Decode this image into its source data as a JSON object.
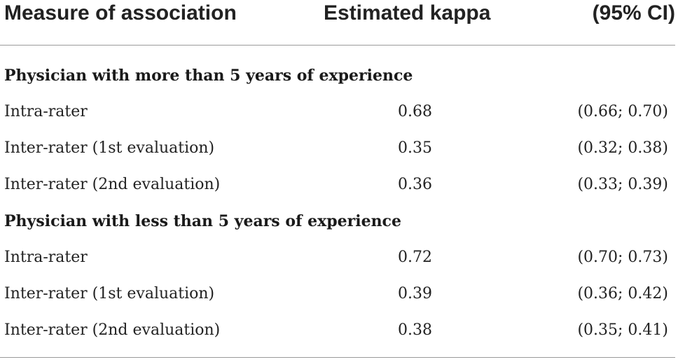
{
  "header": {
    "measure": "Measure of association",
    "kappa": "Estimated kappa",
    "ci": "(95% CI)"
  },
  "groups": [
    {
      "title": "Physician with more than 5 years of experience",
      "rows": [
        {
          "label": "Intra-rater",
          "kappa": "0.68",
          "ci": "(0.66; 0.70)"
        },
        {
          "label": "Inter-rater (1st evaluation)",
          "kappa": "0.35",
          "ci": "(0.32; 0.38)"
        },
        {
          "label": "Inter-rater (2nd evaluation)",
          "kappa": "0.36",
          "ci": "(0.33; 0.39)"
        }
      ]
    },
    {
      "title": "Physician with less than 5 years of experience",
      "rows": [
        {
          "label": "Intra-rater",
          "kappa": "0.72",
          "ci": "(0.70; 0.73)"
        },
        {
          "label": "Inter-rater (1st evaluation)",
          "kappa": "0.39",
          "ci": "(0.36; 0.42)"
        },
        {
          "label": "Inter-rater (2nd evaluation)",
          "kappa": "0.38",
          "ci": "(0.35; 0.41)"
        }
      ]
    }
  ]
}
